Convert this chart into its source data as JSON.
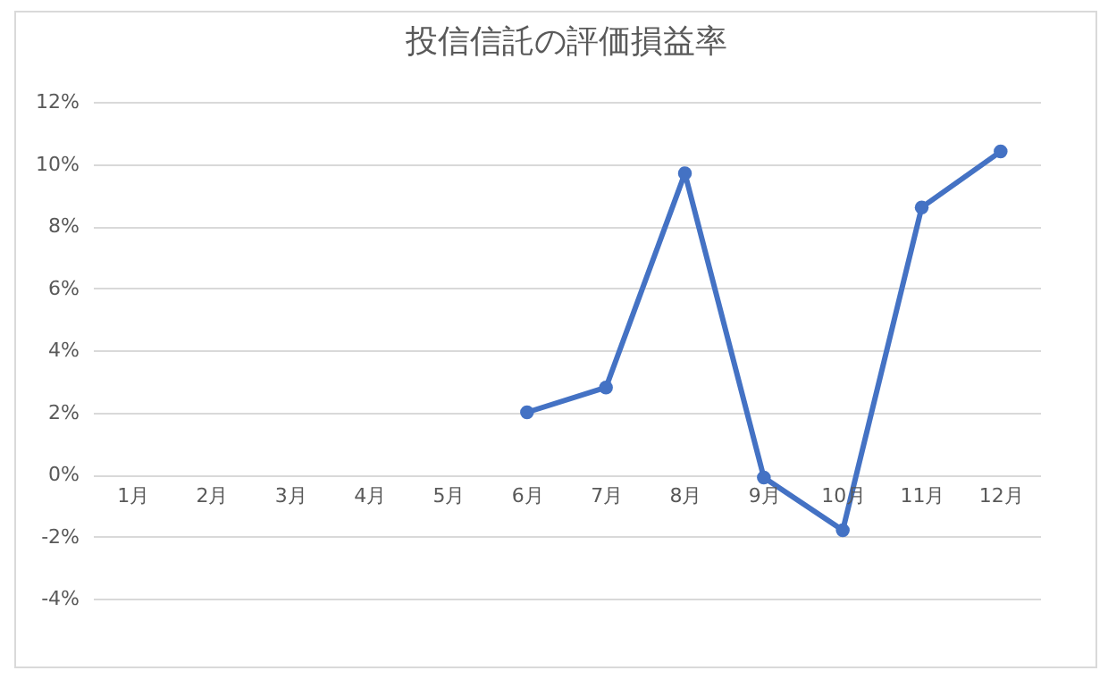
{
  "chart_data": {
    "type": "line",
    "title": "投信信託の評価損益率",
    "categories": [
      "1月",
      "2月",
      "3月",
      "4月",
      "5月",
      "6月",
      "7月",
      "8月",
      "9月",
      "10月",
      "11月",
      "12月"
    ],
    "series": [
      {
        "color": "#4472c4",
        "values": [
          null,
          null,
          null,
          null,
          null,
          2.0,
          2.8,
          9.7,
          -0.1,
          -1.8,
          8.6,
          10.4
        ]
      }
    ],
    "ylim": [
      -4,
      12
    ],
    "yticks": [
      {
        "value": -4,
        "label": "-4%"
      },
      {
        "value": -2,
        "label": "-2%"
      },
      {
        "value": 0,
        "label": "0%"
      },
      {
        "value": 2,
        "label": "2%"
      },
      {
        "value": 4,
        "label": "4%"
      },
      {
        "value": 6,
        "label": "6%"
      },
      {
        "value": 8,
        "label": "8%"
      },
      {
        "value": 10,
        "label": "10%"
      },
      {
        "value": 12,
        "label": "12%"
      }
    ],
    "grid": "y",
    "marker": "circle",
    "line_style": "solid",
    "legend": false
  }
}
